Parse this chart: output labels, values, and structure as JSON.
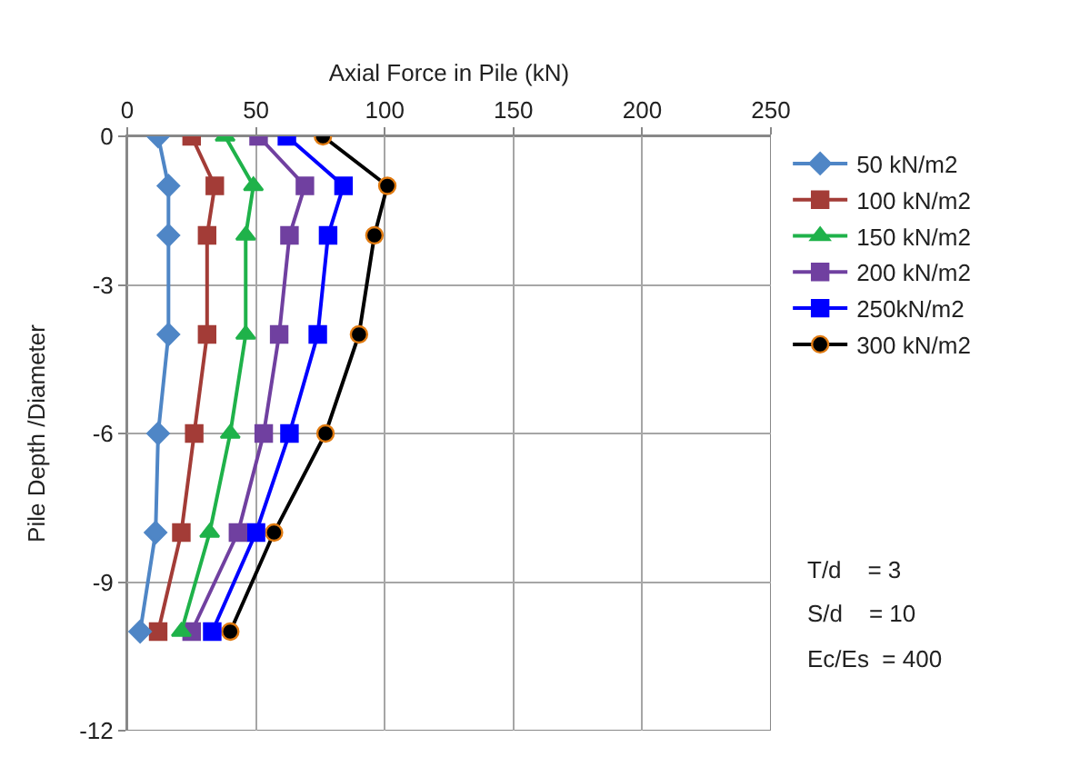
{
  "chart_data": {
    "type": "line",
    "xlabel": "Axial Force in Pile (kN)",
    "ylabel": "Pile Depth /Diameter",
    "xlim": [
      0,
      250
    ],
    "xticks": [
      0,
      50,
      100,
      150,
      200,
      250
    ],
    "ylim": [
      -12,
      0
    ],
    "yticks": [
      -12,
      -9,
      -6,
      -3,
      0
    ],
    "grid": true,
    "legend": "right",
    "series": [
      {
        "name": "50 kN/m2",
        "color": "#4f86c6",
        "marker": "diamond",
        "x": [
          12,
          16,
          16,
          16,
          12,
          11,
          5
        ],
        "values": [
          0,
          -1,
          -2,
          -4,
          -6,
          -8,
          -10
        ]
      },
      {
        "name": "100 kN/m2",
        "color": "#a33c37",
        "marker": "square",
        "x": [
          25,
          34,
          31,
          31,
          26,
          21,
          12
        ],
        "values": [
          0,
          -1,
          -2,
          -4,
          -6,
          -8,
          -10
        ]
      },
      {
        "name": "150 kN/m2",
        "color": "#1fb24a",
        "marker": "triangle",
        "x": [
          38,
          49,
          46,
          46,
          40,
          32,
          21
        ],
        "values": [
          0,
          -1,
          -2,
          -4,
          -6,
          -8,
          -10
        ]
      },
      {
        "name": "200 kN/m2",
        "color": "#7040a0",
        "marker": "square",
        "x": [
          51,
          69,
          63,
          59,
          53,
          43,
          25
        ],
        "values": [
          0,
          -1,
          -2,
          -4,
          -6,
          -8,
          -10
        ]
      },
      {
        "name": "250kN/m2",
        "color": "#0000ff",
        "marker": "square",
        "x": [
          62,
          84,
          78,
          74,
          63,
          50,
          33
        ],
        "values": [
          0,
          -1,
          -2,
          -4,
          -6,
          -8,
          -10
        ]
      },
      {
        "name": "300 kN/m2",
        "color": "#000000",
        "marker": "circle",
        "x": [
          76,
          101,
          96,
          90,
          77,
          57,
          40
        ],
        "values": [
          0,
          -1,
          -2,
          -4,
          -6,
          -8,
          -10
        ]
      }
    ],
    "annotations": [
      "T/d    = 3",
      "S/d    = 10",
      "Ec/Es  = 400"
    ]
  }
}
